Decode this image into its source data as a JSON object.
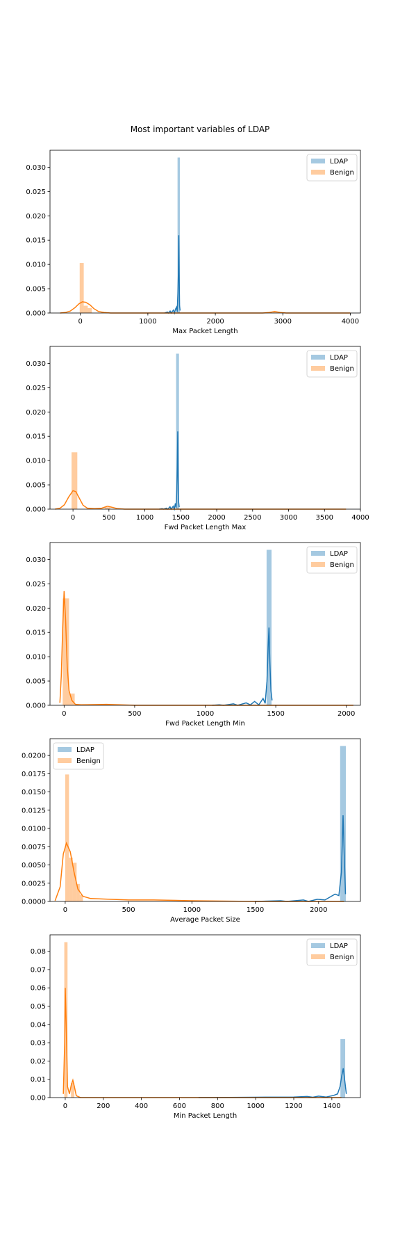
{
  "title": "Most important variables of LDAP",
  "colors": {
    "ldap": "#1f77b4",
    "benign": "#ff7f0e"
  },
  "chart_data": [
    {
      "type": "histogram+kde",
      "xlabel": "Max Packet Length",
      "xlim": [
        -450,
        4150
      ],
      "ylim": [
        0,
        0.0335
      ],
      "xticks": [
        0,
        1000,
        2000,
        3000,
        4000
      ],
      "xtick_labels": [
        "0",
        "1000",
        "2000",
        "3000",
        "4000"
      ],
      "yticks": [
        0,
        0.005,
        0.01,
        0.015,
        0.02,
        0.025,
        0.03
      ],
      "ytick_labels": [
        "0.000",
        "0.005",
        "0.010",
        "0.015",
        "0.020",
        "0.025",
        "0.030"
      ],
      "legend_loc": "upper right",
      "series": [
        {
          "name": "LDAP",
          "color_key": "ldap",
          "bars": [
            {
              "x0": 1440,
              "x1": 1475,
              "h": 0.032
            }
          ],
          "kde": [
            [
              1250,
              0
            ],
            [
              1290,
              0.0002
            ],
            [
              1305,
              0
            ],
            [
              1330,
              0.0004
            ],
            [
              1345,
              0
            ],
            [
              1380,
              0.0006
            ],
            [
              1395,
              0
            ],
            [
              1410,
              0.0008
            ],
            [
              1425,
              0.0012
            ],
            [
              1435,
              0.0002
            ],
            [
              1445,
              0.004
            ],
            [
              1452,
              0.008
            ],
            [
              1458,
              0.016
            ],
            [
              1464,
              0.008
            ],
            [
              1470,
              0.0015
            ],
            [
              1478,
              0.0005
            ]
          ]
        },
        {
          "name": "Benign",
          "color_key": "benign",
          "bars": [
            {
              "x0": -10,
              "x1": 50,
              "h": 0.0103
            },
            {
              "x0": 50,
              "x1": 110,
              "h": 0.0015
            },
            {
              "x0": 110,
              "x1": 170,
              "h": 0.001
            },
            {
              "x0": 2850,
              "x1": 2920,
              "h": 0.0003
            }
          ],
          "kde": [
            [
              -300,
              0
            ],
            [
              -220,
              0.0001
            ],
            [
              -150,
              0.0004
            ],
            [
              -80,
              0.0011
            ],
            [
              -20,
              0.0019
            ],
            [
              30,
              0.0023
            ],
            [
              80,
              0.0022
            ],
            [
              140,
              0.0017
            ],
            [
              200,
              0.0009
            ],
            [
              270,
              0.0003
            ],
            [
              350,
              0.0001
            ],
            [
              450,
              0
            ],
            [
              1000,
              0
            ],
            [
              2700,
              0
            ],
            [
              2800,
              0.0001
            ],
            [
              2880,
              0.0003
            ],
            [
              2960,
              0.0001
            ],
            [
              3050,
              0
            ],
            [
              4000,
              0
            ]
          ]
        }
      ]
    },
    {
      "type": "histogram+kde",
      "xlabel": "Fwd Packet Length Max",
      "xlim": [
        -320,
        4000
      ],
      "ylim": [
        0,
        0.0335
      ],
      "xticks": [
        0,
        500,
        1000,
        1500,
        2000,
        2500,
        3000,
        3500,
        4000
      ],
      "xtick_labels": [
        "0",
        "500",
        "1000",
        "1500",
        "2000",
        "2500",
        "3000",
        "3500",
        "4000"
      ],
      "yticks": [
        0,
        0.005,
        0.01,
        0.015,
        0.02,
        0.025,
        0.03
      ],
      "ytick_labels": [
        "0.000",
        "0.005",
        "0.010",
        "0.015",
        "0.020",
        "0.025",
        "0.030"
      ],
      "legend_loc": "upper right",
      "series": [
        {
          "name": "LDAP",
          "color_key": "ldap",
          "bars": [
            {
              "x0": 1435,
              "x1": 1475,
              "h": 0.032
            }
          ],
          "kde": [
            [
              1200,
              0
            ],
            [
              1240,
              0.0001
            ],
            [
              1260,
              0
            ],
            [
              1300,
              0.0002
            ],
            [
              1320,
              0
            ],
            [
              1350,
              0.0005
            ],
            [
              1365,
              0
            ],
            [
              1395,
              0.0006
            ],
            [
              1410,
              0
            ],
            [
              1425,
              0.0012
            ],
            [
              1435,
              0.0003
            ],
            [
              1445,
              0.004
            ],
            [
              1452,
              0.009
            ],
            [
              1458,
              0.016
            ],
            [
              1464,
              0.006
            ],
            [
              1470,
              0.0015
            ],
            [
              1478,
              0.0004
            ]
          ]
        },
        {
          "name": "Benign",
          "color_key": "benign",
          "bars": [
            {
              "x0": -20,
              "x1": 60,
              "h": 0.0117
            },
            {
              "x0": 440,
              "x1": 520,
              "h": 0.0004
            }
          ],
          "kde": [
            [
              -250,
              0
            ],
            [
              -180,
              0.0002
            ],
            [
              -120,
              0.0009
            ],
            [
              -60,
              0.0025
            ],
            [
              0,
              0.0038
            ],
            [
              40,
              0.0036
            ],
            [
              90,
              0.0022
            ],
            [
              140,
              0.0008
            ],
            [
              200,
              0.0002
            ],
            [
              300,
              0.0001
            ],
            [
              400,
              0.0002
            ],
            [
              480,
              0.0006
            ],
            [
              540,
              0.0004
            ],
            [
              620,
              0.0001
            ],
            [
              720,
              0
            ],
            [
              1500,
              0
            ],
            [
              3800,
              0
            ]
          ]
        }
      ]
    },
    {
      "type": "histogram+kde",
      "xlabel": "Fwd Packet Length Min",
      "xlim": [
        -100,
        2100
      ],
      "ylim": [
        0,
        0.0335
      ],
      "xticks": [
        0,
        500,
        1000,
        1500,
        2000
      ],
      "xtick_labels": [
        "0",
        "500",
        "1000",
        "1500",
        "2000"
      ],
      "yticks": [
        0,
        0.005,
        0.01,
        0.015,
        0.02,
        0.025,
        0.03
      ],
      "ytick_labels": [
        "0.000",
        "0.005",
        "0.010",
        "0.015",
        "0.020",
        "0.025",
        "0.030"
      ],
      "legend_loc": "upper right",
      "series": [
        {
          "name": "LDAP",
          "color_key": "ldap",
          "bars": [
            {
              "x0": 1435,
              "x1": 1470,
              "h": 0.032
            }
          ],
          "kde": [
            [
              1050,
              0
            ],
            [
              1100,
              0.0001
            ],
            [
              1130,
              0
            ],
            [
              1200,
              0.0003
            ],
            [
              1230,
              0
            ],
            [
              1290,
              0.0005
            ],
            [
              1320,
              0.0001
            ],
            [
              1350,
              0.0008
            ],
            [
              1380,
              0.0001
            ],
            [
              1410,
              0.0014
            ],
            [
              1425,
              0.0004
            ],
            [
              1438,
              0.005
            ],
            [
              1446,
              0.012
            ],
            [
              1452,
              0.016
            ],
            [
              1458,
              0.009
            ],
            [
              1466,
              0.003
            ],
            [
              1474,
              0.001
            ]
          ]
        },
        {
          "name": "Benign",
          "color_key": "benign",
          "bars": [
            {
              "x0": -10,
              "x1": 35,
              "h": 0.022
            },
            {
              "x0": 35,
              "x1": 75,
              "h": 0.0024
            }
          ],
          "kde": [
            [
              -30,
              0.0005
            ],
            [
              -20,
              0.006
            ],
            [
              -10,
              0.016
            ],
            [
              0,
              0.0235
            ],
            [
              10,
              0.018
            ],
            [
              22,
              0.008
            ],
            [
              35,
              0.003
            ],
            [
              55,
              0.001
            ],
            [
              80,
              0.0002
            ],
            [
              120,
              0.0001
            ],
            [
              300,
              0.0002
            ],
            [
              500,
              0
            ],
            [
              2050,
              0
            ]
          ]
        }
      ]
    },
    {
      "type": "histogram+kde",
      "xlabel": "Average Packet Size",
      "xlim": [
        -120,
        2330
      ],
      "ylim": [
        0,
        0.0223
      ],
      "xticks": [
        0,
        500,
        1000,
        1500,
        2000
      ],
      "xtick_labels": [
        "0",
        "500",
        "1000",
        "1500",
        "2000"
      ],
      "yticks": [
        0,
        0.0025,
        0.005,
        0.0075,
        0.01,
        0.0125,
        0.015,
        0.0175,
        0.02
      ],
      "ytick_labels": [
        "0.0000",
        "0.0025",
        "0.0050",
        "0.0075",
        "0.0100",
        "0.0125",
        "0.0150",
        "0.0175",
        "0.0200"
      ],
      "legend_loc": "upper left",
      "series": [
        {
          "name": "LDAP",
          "color_key": "ldap",
          "bars": [
            {
              "x0": 2170,
              "x1": 2215,
              "h": 0.0213
            }
          ],
          "kde": [
            [
              1500,
              0
            ],
            [
              1700,
              0.0001
            ],
            [
              1750,
              0
            ],
            [
              1880,
              0.0002
            ],
            [
              1920,
              0
            ],
            [
              1990,
              0.0003
            ],
            [
              2050,
              0.0002
            ],
            [
              2130,
              0.001
            ],
            [
              2160,
              0.0008
            ],
            [
              2180,
              0.004
            ],
            [
              2193,
              0.0118
            ],
            [
              2203,
              0.006
            ],
            [
              2212,
              0.001
            ]
          ]
        },
        {
          "name": "Benign",
          "color_key": "benign",
          "bars": [
            {
              "x0": 0,
              "x1": 30,
              "h": 0.0174
            },
            {
              "x0": 30,
              "x1": 60,
              "h": 0.006
            },
            {
              "x0": 60,
              "x1": 90,
              "h": 0.0053
            },
            {
              "x0": 90,
              "x1": 115,
              "h": 0.0024
            },
            {
              "x0": 115,
              "x1": 140,
              "h": 0.0009
            }
          ],
          "kde": [
            [
              -80,
              0.0001
            ],
            [
              -40,
              0.002
            ],
            [
              -15,
              0.0065
            ],
            [
              10,
              0.008
            ],
            [
              40,
              0.0068
            ],
            [
              70,
              0.004
            ],
            [
              100,
              0.0017
            ],
            [
              140,
              0.0007
            ],
            [
              200,
              0.0004
            ],
            [
              350,
              0.0003
            ],
            [
              500,
              0.0002
            ],
            [
              700,
              0.0002
            ],
            [
              1000,
              0.0001
            ],
            [
              1500,
              0
            ],
            [
              2200,
              0
            ]
          ]
        }
      ]
    },
    {
      "type": "histogram+kde",
      "xlabel": "Min Packet Length",
      "xlim": [
        -80,
        1550
      ],
      "ylim": [
        0,
        0.089
      ],
      "xticks": [
        0,
        200,
        400,
        600,
        800,
        1000,
        1200,
        1400
      ],
      "xtick_labels": [
        "0",
        "200",
        "400",
        "600",
        "800",
        "1000",
        "1200",
        "1400"
      ],
      "yticks": [
        0,
        0.01,
        0.02,
        0.03,
        0.04,
        0.05,
        0.06,
        0.07,
        0.08
      ],
      "ytick_labels": [
        "0.00",
        "0.01",
        "0.02",
        "0.03",
        "0.04",
        "0.05",
        "0.06",
        "0.07",
        "0.08"
      ],
      "legend_loc": "upper right",
      "series": [
        {
          "name": "LDAP",
          "color_key": "ldap",
          "bars": [
            {
              "x0": 1445,
              "x1": 1470,
              "h": 0.032
            }
          ],
          "kde": [
            [
              700,
              0
            ],
            [
              1000,
              0.0002
            ],
            [
              1200,
              0.0003
            ],
            [
              1270,
              0.0006
            ],
            [
              1300,
              0.0002
            ],
            [
              1330,
              0.0008
            ],
            [
              1370,
              0.0003
            ],
            [
              1410,
              0.0012
            ],
            [
              1430,
              0.002
            ],
            [
              1443,
              0.006
            ],
            [
              1452,
              0.012
            ],
            [
              1460,
              0.016
            ],
            [
              1468,
              0.009
            ],
            [
              1476,
              0.002
            ]
          ]
        },
        {
          "name": "Benign",
          "color_key": "benign",
          "bars": [
            {
              "x0": -5,
              "x1": 12,
              "h": 0.085
            },
            {
              "x0": 30,
              "x1": 48,
              "h": 0.008
            }
          ],
          "kde": [
            [
              -10,
              0.002
            ],
            [
              -3,
              0.03
            ],
            [
              0,
              0.06
            ],
            [
              5,
              0.04
            ],
            [
              12,
              0.006
            ],
            [
              22,
              0.002
            ],
            [
              32,
              0.007
            ],
            [
              40,
              0.0095
            ],
            [
              48,
              0.006
            ],
            [
              58,
              0.001
            ],
            [
              80,
              0
            ],
            [
              1450,
              0
            ]
          ]
        }
      ]
    }
  ]
}
